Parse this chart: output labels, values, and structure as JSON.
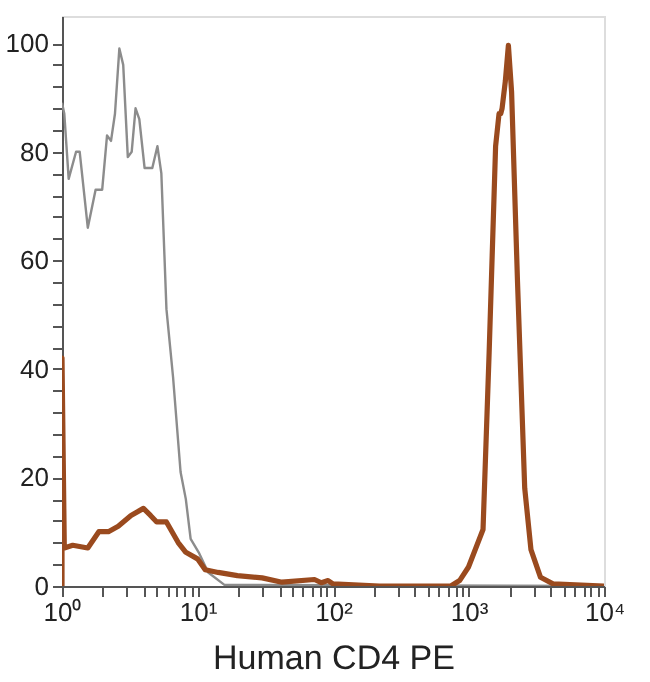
{
  "chart_data": {
    "type": "line",
    "xlabel": "Human CD4  PE",
    "log": "x",
    "xlim": [
      1,
      10000
    ],
    "ylim": [
      0,
      105
    ],
    "xticks": [
      {
        "value": 1,
        "label": "10⁰"
      },
      {
        "value": 2,
        "label": null
      },
      {
        "value": 3,
        "label": null
      },
      {
        "value": 4,
        "label": null
      },
      {
        "value": 5,
        "label": null
      },
      {
        "value": 6,
        "label": null
      },
      {
        "value": 7,
        "label": null
      },
      {
        "value": 8,
        "label": null
      },
      {
        "value": 9,
        "label": null
      },
      {
        "value": 10,
        "label": "10¹"
      },
      {
        "value": 20,
        "label": null
      },
      {
        "value": 30,
        "label": null
      },
      {
        "value": 40,
        "label": null
      },
      {
        "value": 50,
        "label": null
      },
      {
        "value": 60,
        "label": null
      },
      {
        "value": 70,
        "label": null
      },
      {
        "value": 80,
        "label": null
      },
      {
        "value": 90,
        "label": null
      },
      {
        "value": 100,
        "label": "10²"
      },
      {
        "value": 200,
        "label": null
      },
      {
        "value": 300,
        "label": null
      },
      {
        "value": 400,
        "label": null
      },
      {
        "value": 500,
        "label": null
      },
      {
        "value": 600,
        "label": null
      },
      {
        "value": 700,
        "label": null
      },
      {
        "value": 800,
        "label": null
      },
      {
        "value": 900,
        "label": null
      },
      {
        "value": 1000,
        "label": "10³"
      },
      {
        "value": 2000,
        "label": null
      },
      {
        "value": 3000,
        "label": null
      },
      {
        "value": 4000,
        "label": null
      },
      {
        "value": 5000,
        "label": null
      },
      {
        "value": 6000,
        "label": null
      },
      {
        "value": 7000,
        "label": null
      },
      {
        "value": 8000,
        "label": null
      },
      {
        "value": 9000,
        "label": null
      },
      {
        "value": 10000,
        "label": "10⁴"
      }
    ],
    "yticks": [
      0,
      {
        "value": 4,
        "label": null
      },
      {
        "value": 8,
        "label": null
      },
      {
        "value": 12,
        "label": null
      },
      {
        "value": 16,
        "label": null
      },
      20,
      {
        "value": 24,
        "label": null
      },
      {
        "value": 28,
        "label": null
      },
      {
        "value": 32,
        "label": null
      },
      {
        "value": 36,
        "label": null
      },
      40,
      {
        "value": 44,
        "label": null
      },
      {
        "value": 48,
        "label": null
      },
      {
        "value": 52,
        "label": null
      },
      {
        "value": 56,
        "label": null
      },
      60,
      {
        "value": 64,
        "label": null
      },
      {
        "value": 68,
        "label": null
      },
      {
        "value": 72,
        "label": null
      },
      {
        "value": 76,
        "label": null
      },
      80,
      {
        "value": 84,
        "label": null
      },
      {
        "value": 88,
        "label": null
      },
      {
        "value": 92,
        "label": null
      },
      {
        "value": 96,
        "label": null
      },
      100
    ],
    "grid": false,
    "legend": false,
    "marker": "none",
    "line_style": "solid",
    "series": [
      {
        "color": "#8c8c8c",
        "x": [
          1,
          1.04,
          1.12,
          1.27,
          1.35,
          1.55,
          1.77,
          1.98,
          2.15,
          2.3,
          2.46,
          2.65,
          2.83,
          3.06,
          3.27,
          3.49,
          3.72,
          4.07,
          4.64,
          5.06,
          5.41,
          5.9,
          6.6,
          7.5,
          8.2,
          8.9,
          10.2,
          12,
          15.8,
          10000
        ],
        "values": [
          89,
          87,
          75,
          80,
          80,
          66,
          73,
          73,
          83,
          82,
          87,
          99,
          96,
          79,
          80,
          88,
          86,
          77,
          77,
          81,
          76,
          51,
          38.5,
          21,
          16,
          8.7,
          6.2,
          2.5,
          0.2,
          0
        ]
      },
      {
        "color": "#9a4a1e",
        "x": [
          1,
          1,
          1.04,
          1.2,
          1.55,
          1.87,
          2.2,
          2.6,
          3.23,
          3.99,
          4.5,
          5.0,
          5.9,
          7.2,
          8.2,
          10,
          11.4,
          14.2,
          19.7,
          30,
          42,
          73,
          82,
          92,
          100,
          220,
          740,
          860,
          1000,
          1280,
          1420,
          1585,
          1680,
          1730,
          1770,
          1870,
          1970,
          2080,
          2300,
          2600,
          2890,
          3400,
          4200,
          10000
        ],
        "values": [
          0,
          42,
          7,
          7.5,
          7,
          10,
          10,
          11,
          13,
          14.3,
          13,
          11.8,
          11.8,
          8,
          6.2,
          5,
          3,
          2.5,
          1.9,
          1.5,
          0.7,
          1.2,
          0.6,
          1,
          0.4,
          0,
          0,
          1,
          3.5,
          10.4,
          43,
          81,
          87,
          87,
          88,
          93,
          99.6,
          91,
          56,
          18,
          6.7,
          1.6,
          0.4,
          0
        ]
      }
    ]
  }
}
